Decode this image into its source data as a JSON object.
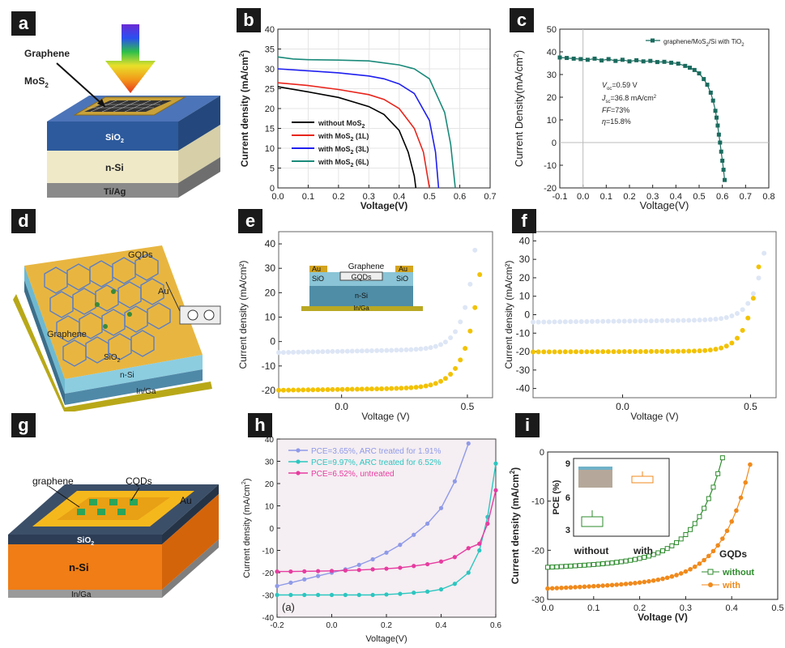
{
  "labels": {
    "a": "a",
    "b": "b",
    "c": "c",
    "d": "d",
    "e": "e",
    "f": "f",
    "g": "g",
    "h": "h",
    "i": "i"
  },
  "diagram_a": {
    "graphene": "Graphene",
    "mos2": "MoS",
    "mos2_sub": "2",
    "sio2": "SiO",
    "sio2_sub": "2",
    "nsi": "n-Si",
    "tiag": "Ti/Ag"
  },
  "diagram_d": {
    "gqds": "GQDs",
    "au": "Au",
    "graphene": "Graphene",
    "sio2": "SiO",
    "sio2_sub": "2",
    "nsi": "n-Si",
    "inga": "In/Ga"
  },
  "diagram_g": {
    "graphene": "graphene",
    "cqds": "CQDs",
    "au": "Au",
    "sio2": "SiO",
    "sio2_sub": "2",
    "nsi": "n-Si",
    "inga": "In/Ga"
  },
  "inset_e": {
    "graphene": "Graphene",
    "au_left": "Au",
    "au_right": "Au",
    "sio2_left": "SiO",
    "sio2_right": "SiO",
    "sub2": "2",
    "gqds": "GQDs",
    "nsi": "n-Si",
    "inga": "In/Ga"
  },
  "chart_data": [
    {
      "id": "b",
      "type": "line",
      "xlabel": "Voltage(V)",
      "ylabel": "Current density (mA/cm",
      "ylabel_sup": "2",
      "ylabel_end": ")",
      "xlim": [
        0,
        0.7
      ],
      "ylim": [
        0,
        40
      ],
      "xticks": [
        "0.0",
        "0.1",
        "0.2",
        "0.3",
        "0.4",
        "0.5",
        "0.6",
        "0.7"
      ],
      "yticks": [
        "0",
        "5",
        "10",
        "15",
        "20",
        "25",
        "30",
        "35",
        "40"
      ],
      "series": [
        {
          "name": "without MoS",
          "sub": "2",
          "tail": "",
          "color": "#000000",
          "x": [
            0,
            0.1,
            0.2,
            0.3,
            0.35,
            0.4,
            0.43,
            0.45,
            0.455
          ],
          "y": [
            25.5,
            24.2,
            22.8,
            20.5,
            18.5,
            14.5,
            9,
            3,
            0
          ]
        },
        {
          "name": "with MoS",
          "sub": "2",
          "tail": " (1L)",
          "color": "#e8241b",
          "x": [
            0,
            0.1,
            0.2,
            0.3,
            0.35,
            0.4,
            0.45,
            0.48,
            0.5
          ],
          "y": [
            26.5,
            25.8,
            24.8,
            23.5,
            22.3,
            20,
            15,
            9,
            0
          ]
        },
        {
          "name": "with MoS",
          "sub": "2",
          "tail": " (3L)",
          "color": "#1f1ff0",
          "x": [
            0,
            0.1,
            0.2,
            0.3,
            0.35,
            0.4,
            0.45,
            0.5,
            0.52,
            0.53
          ],
          "y": [
            30,
            29.5,
            29,
            28.2,
            27.5,
            26.2,
            23.8,
            17,
            9,
            0
          ]
        },
        {
          "name": "with MoS",
          "sub": "2",
          "tail": " (6L)",
          "color": "#1a8a7a",
          "x": [
            0,
            0.05,
            0.1,
            0.2,
            0.3,
            0.35,
            0.4,
            0.45,
            0.5,
            0.55,
            0.57,
            0.585
          ],
          "y": [
            33,
            32.5,
            32.3,
            32.2,
            32,
            31.5,
            31,
            30,
            27.5,
            19,
            11,
            0
          ]
        }
      ]
    },
    {
      "id": "c",
      "type": "line",
      "xlabel": "Voltage(V)",
      "ylabel": "Current Density(mA/cm",
      "ylabel_sup": "2",
      "ylabel_end": ")",
      "xlim": [
        -0.1,
        0.8
      ],
      "ylim": [
        -20,
        50
      ],
      "xticks": [
        "-0.1",
        "0.0",
        "0.1",
        "0.2",
        "0.3",
        "0.4",
        "0.5",
        "0.6",
        "0.7",
        "0.8"
      ],
      "yticks": [
        "-20",
        "-10",
        "0",
        "10",
        "20",
        "30",
        "40",
        "50"
      ],
      "legend": "graphene/MoS",
      "legend_sub": "2",
      "legend_tail": "/Si with TiO",
      "legend_sub2": "2",
      "annotations": [
        "V",
        "oc",
        "=0.59 V",
        "J",
        "sc",
        "=36.8 mA/cm",
        "2",
        "FF",
        "=73%",
        "η",
        "=15.8%"
      ],
      "series": [
        {
          "name": "graphene/MoS2/Si with TiO2",
          "color": "#1a6b5e",
          "x": [
            -0.1,
            -0.07,
            -0.04,
            -0.01,
            0.02,
            0.05,
            0.08,
            0.11,
            0.14,
            0.17,
            0.2,
            0.23,
            0.26,
            0.29,
            0.32,
            0.35,
            0.38,
            0.41,
            0.44,
            0.46,
            0.48,
            0.5,
            0.52,
            0.535,
            0.55,
            0.56,
            0.57,
            0.575,
            0.58,
            0.585,
            0.59,
            0.595,
            0.6,
            0.605,
            0.61
          ],
          "y": [
            37.5,
            37.3,
            37,
            36.8,
            36.5,
            37,
            36.2,
            36.8,
            36,
            36.5,
            35.8,
            36.3,
            35.8,
            36,
            35.5,
            35.6,
            35.2,
            34.8,
            33.8,
            33,
            32,
            30.5,
            28,
            25.5,
            22,
            18.5,
            14,
            11,
            7.5,
            3.5,
            0,
            -4,
            -8,
            -12,
            -16.5
          ]
        }
      ]
    },
    {
      "id": "e",
      "type": "scatter",
      "xlabel": "Voltage (V)",
      "ylabel": "Current density (mA/cm²)",
      "xlim": [
        -0.25,
        0.6
      ],
      "ylim": [
        -23,
        45
      ],
      "xticks": [
        "0.0",
        "0.5"
      ],
      "yticks": [
        "-20",
        "-10",
        "0",
        "10",
        "20",
        "30",
        "40"
      ],
      "series": [
        {
          "name": "light",
          "color": "#dde6f5",
          "x": [],
          "y": []
        },
        {
          "name": "gold",
          "color": "#f2c200",
          "x": [],
          "y": []
        }
      ]
    },
    {
      "id": "f",
      "type": "scatter",
      "xlabel": "Voltage (V)",
      "ylabel": "Current density (mA/cm²)",
      "xlim": [
        -0.35,
        0.6
      ],
      "ylim": [
        -45,
        45
      ],
      "xticks": [
        "0.0",
        "0.5"
      ],
      "yticks": [
        "-40",
        "-30",
        "-20",
        "-10",
        "0",
        "10",
        "20",
        "30",
        "40"
      ],
      "series": [
        {
          "name": "light",
          "color": "#dde6f5",
          "x": [],
          "y": []
        },
        {
          "name": "gold",
          "color": "#f2c200",
          "x": [],
          "y": []
        }
      ]
    },
    {
      "id": "h",
      "type": "line",
      "xlabel": "Voltage(V)",
      "ylabel": "Current density (mA/cm",
      "ylabel_sup": "2",
      "ylabel_end": ")",
      "xlim": [
        -0.2,
        0.6
      ],
      "ylim": [
        -40,
        40
      ],
      "panel_tag": "(a)",
      "xticks": [
        "-0.2",
        "0.0",
        "0.2",
        "0.4",
        "0.6"
      ],
      "yticks": [
        "-40",
        "-30",
        "-20",
        "-10",
        "0",
        "10",
        "20",
        "30",
        "40"
      ],
      "series": [
        {
          "name": "PCE=3.65%, ARC treated for 1.91%",
          "color": "#8f9ae8",
          "x": [
            -0.2,
            -0.15,
            -0.1,
            -0.05,
            0,
            0.05,
            0.1,
            0.15,
            0.2,
            0.25,
            0.3,
            0.35,
            0.4,
            0.45,
            0.5
          ],
          "y": [
            -26,
            -24.5,
            -23,
            -21.5,
            -20,
            -18.5,
            -16.5,
            -14,
            -11,
            -7.5,
            -3,
            2,
            9,
            21,
            38
          ]
        },
        {
          "name": "PCE=9.97%, ARC treated for 6.52%",
          "color": "#2cc6c0",
          "x": [
            -0.2,
            -0.15,
            -0.1,
            -0.05,
            0,
            0.05,
            0.1,
            0.15,
            0.2,
            0.25,
            0.3,
            0.35,
            0.4,
            0.45,
            0.5,
            0.54,
            0.57,
            0.6
          ],
          "y": [
            -30,
            -30,
            -30,
            -30,
            -30,
            -30,
            -30,
            -30,
            -29.8,
            -29.5,
            -29,
            -28.5,
            -27.5,
            -25,
            -20,
            -10,
            5,
            29
          ]
        },
        {
          "name": "PCE=6.52%, untreated",
          "color": "#e63ca0",
          "x": [
            -0.2,
            -0.15,
            -0.1,
            -0.05,
            0,
            0.05,
            0.1,
            0.15,
            0.2,
            0.25,
            0.3,
            0.35,
            0.4,
            0.45,
            0.5,
            0.54,
            0.57,
            0.6
          ],
          "y": [
            -19.5,
            -19.5,
            -19.4,
            -19.3,
            -19.2,
            -19,
            -18.8,
            -18.5,
            -18.2,
            -17.8,
            -17,
            -16.2,
            -15,
            -13,
            -9,
            -7,
            2,
            17
          ]
        }
      ]
    },
    {
      "id": "i",
      "type": "line",
      "xlabel": "Voltage (V)",
      "ylabel": "Current density (mA/cm",
      "ylabel_sup": "2",
      "ylabel_end": ")",
      "xlim": [
        0,
        0.5
      ],
      "ylim": [
        -30,
        0
      ],
      "xticks": [
        "0.0",
        "0.1",
        "0.2",
        "0.3",
        "0.4",
        "0.5"
      ],
      "yticks": [
        "-30",
        "-20",
        "-10",
        "0"
      ],
      "legend_title": "GQDs",
      "series": [
        {
          "name": "without",
          "color": "#2e8b2e",
          "x": [],
          "y": []
        },
        {
          "name": "with",
          "color": "#f08a1c",
          "x": [],
          "y": []
        }
      ],
      "inset": {
        "ylabel": "PCE (%)",
        "yticks": [
          "3",
          "6",
          "9"
        ],
        "categories": [
          "without",
          "with"
        ]
      }
    }
  ]
}
